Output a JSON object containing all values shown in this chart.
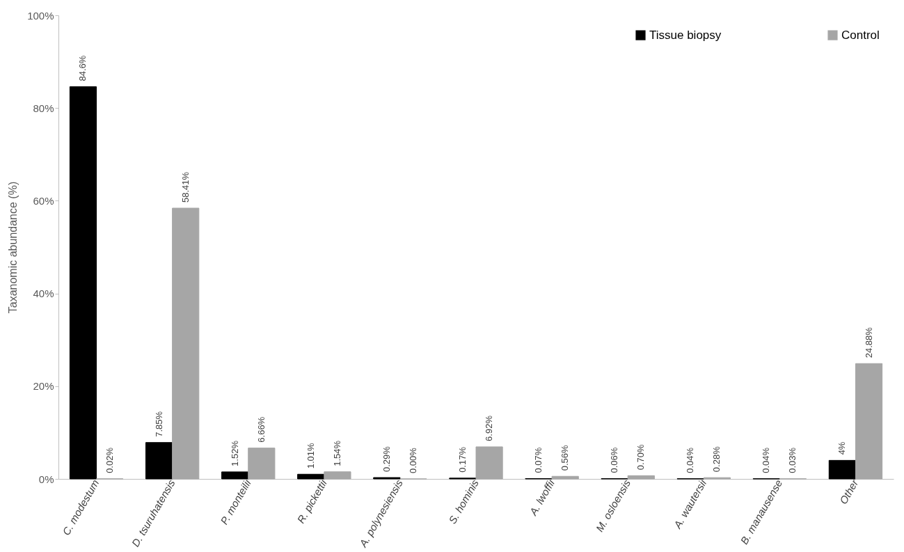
{
  "chart_data": {
    "type": "bar",
    "ylabel": "Taxanomic abundance (%)",
    "categories": [
      "C. modestum",
      "D. tsuruhatensis",
      "P. monteilii",
      "R. pickettii",
      "A. polynesiensis",
      "S. hominis",
      "A. lwoffii",
      "M. osloensis",
      "A. wautersii",
      "B. manausense",
      "Other"
    ],
    "series": [
      {
        "name": "Tissue biopsy",
        "color": "#000000",
        "values": [
          84.6,
          7.85,
          1.52,
          1.01,
          0.29,
          0.17,
          0.07,
          0.06,
          0.04,
          0.04,
          4
        ],
        "value_labels": [
          "84.6%",
          "7.85%",
          "1.52%",
          "1.01%",
          "0.29%",
          "0.17%",
          "0.07%",
          "0.06%",
          "0.04%",
          "0.04%",
          "4%"
        ]
      },
      {
        "name": "Control",
        "color": "#a6a6a6",
        "values": [
          0.02,
          58.41,
          6.66,
          1.54,
          0.0,
          6.92,
          0.56,
          0.7,
          0.28,
          0.03,
          24.88
        ],
        "value_labels": [
          "0.02%",
          "58.41%",
          "6.66%",
          "1.54%",
          "0.00%",
          "6.92%",
          "0.56%",
          "0.70%",
          "0.28%",
          "0.03%",
          "24.88%"
        ]
      }
    ],
    "ylim": [
      0,
      100
    ],
    "yticks": [
      {
        "value": 0,
        "label": "0%"
      },
      {
        "value": 20,
        "label": "20%"
      },
      {
        "value": 40,
        "label": "40%"
      },
      {
        "value": 60,
        "label": "60%"
      },
      {
        "value": 80,
        "label": "80%"
      },
      {
        "value": 100,
        "label": "100%"
      }
    ],
    "grid": false,
    "legend": "top right"
  }
}
